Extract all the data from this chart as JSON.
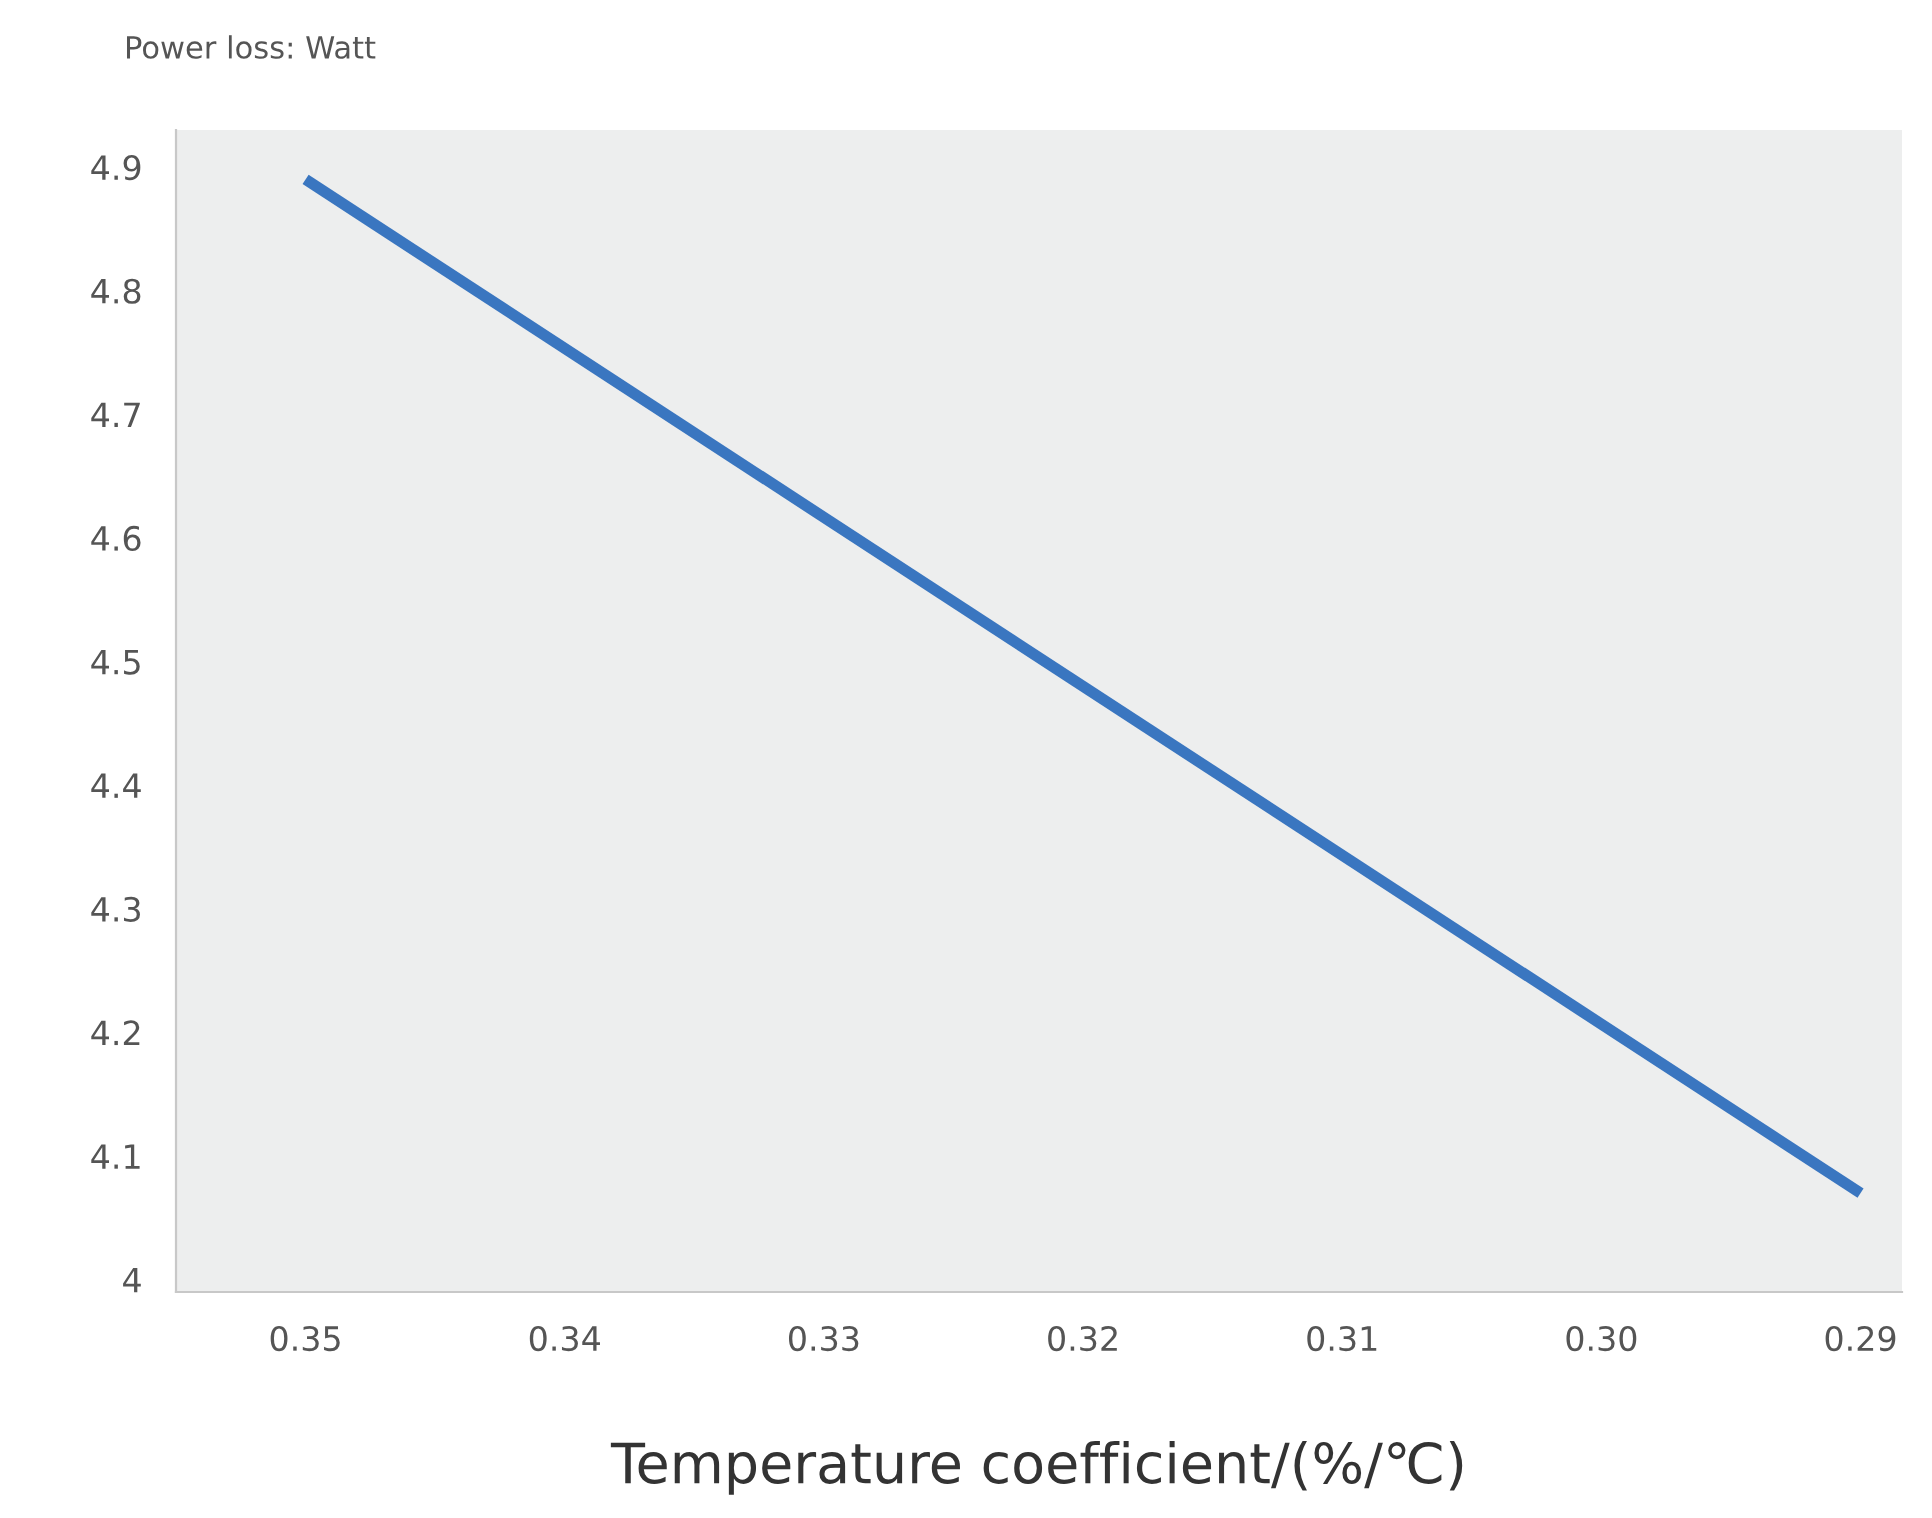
{
  "chart_data": {
    "type": "line",
    "ylabel": "Power loss: Watt",
    "xlabel": "Temperature coefficient/(%/℃)",
    "x": [
      0.35,
      0.29
    ],
    "series": [
      {
        "color": "#3a76c0",
        "values": [
          4.89,
          4.07
        ]
      }
    ],
    "xlim": [
      0.355,
      0.2884
    ],
    "xticks": [
      {
        "value": 0.35,
        "label": "0.35"
      },
      {
        "value": 0.34,
        "label": "0.34"
      },
      {
        "value": 0.33,
        "label": "0.33"
      },
      {
        "value": 0.32,
        "label": "0.32"
      },
      {
        "value": 0.31,
        "label": "0.31"
      },
      {
        "value": 0.3,
        "label": "0.30"
      },
      {
        "value": 0.29,
        "label": "0.29"
      }
    ],
    "ylim": [
      3.99,
      4.93
    ],
    "yticks": [
      4,
      4.1,
      4.2,
      4.3,
      4.4,
      4.5,
      4.6,
      4.7,
      4.8,
      4.9
    ],
    "grid": false,
    "legend": false,
    "marker": "none",
    "line_style": "solid"
  }
}
